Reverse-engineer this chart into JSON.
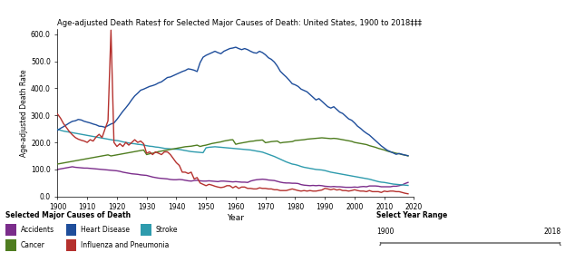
{
  "title": "Age-adjusted Death Rates† for Selected Major Causes of Death: United States, 1900 to 2018‡‡‡",
  "xlabel": "Year",
  "ylabel": "Age-adjusted Death Rate",
  "ylim": [
    0,
    620
  ],
  "xlim": [
    1900,
    2020
  ],
  "yticks": [
    0.0,
    100.0,
    200.0,
    300.0,
    400.0,
    500.0,
    600.0
  ],
  "xticks": [
    1900,
    1910,
    1920,
    1930,
    1940,
    1950,
    1960,
    1970,
    1980,
    1990,
    2000,
    2010,
    2020
  ],
  "legend_title": "Selected Major Causes of Death",
  "legend_entries": [
    "Accidents",
    "Heart Disease",
    "Stroke",
    "Cancer",
    "Influenza and Pneumonia"
  ],
  "legend_colors": [
    "#7B2D8B",
    "#1F4E9B",
    "#2E9BAD",
    "#4F7D20",
    "#B5312E"
  ],
  "background_color": "#ffffff",
  "heart_disease": {
    "years": [
      1900,
      1901,
      1902,
      1903,
      1904,
      1905,
      1906,
      1907,
      1908,
      1909,
      1910,
      1911,
      1912,
      1913,
      1914,
      1915,
      1916,
      1917,
      1918,
      1919,
      1920,
      1921,
      1922,
      1923,
      1924,
      1925,
      1926,
      1927,
      1928,
      1929,
      1930,
      1931,
      1932,
      1933,
      1934,
      1935,
      1936,
      1937,
      1938,
      1939,
      1940,
      1941,
      1942,
      1943,
      1944,
      1945,
      1946,
      1947,
      1948,
      1949,
      1950,
      1951,
      1952,
      1953,
      1954,
      1955,
      1956,
      1957,
      1958,
      1959,
      1960,
      1961,
      1962,
      1963,
      1964,
      1965,
      1966,
      1967,
      1968,
      1969,
      1970,
      1971,
      1972,
      1973,
      1974,
      1975,
      1976,
      1977,
      1978,
      1979,
      1980,
      1981,
      1982,
      1983,
      1984,
      1985,
      1986,
      1987,
      1988,
      1989,
      1990,
      1991,
      1992,
      1993,
      1994,
      1995,
      1996,
      1997,
      1998,
      1999,
      2000,
      2001,
      2002,
      2003,
      2004,
      2005,
      2006,
      2007,
      2008,
      2009,
      2010,
      2011,
      2012,
      2013,
      2014,
      2015,
      2016,
      2017,
      2018
    ],
    "values": [
      245,
      252,
      258,
      265,
      272,
      278,
      280,
      285,
      283,
      278,
      275,
      272,
      268,
      265,
      260,
      259,
      256,
      262,
      268,
      272,
      285,
      300,
      315,
      328,
      342,
      358,
      372,
      382,
      393,
      397,
      402,
      407,
      410,
      414,
      420,
      424,
      432,
      440,
      442,
      447,
      452,
      457,
      462,
      466,
      472,
      470,
      467,
      462,
      495,
      515,
      522,
      527,
      532,
      537,
      532,
      528,
      537,
      542,
      547,
      549,
      552,
      547,
      543,
      547,
      543,
      537,
      532,
      530,
      537,
      532,
      524,
      513,
      507,
      497,
      482,
      463,
      452,
      442,
      430,
      417,
      413,
      407,
      397,
      392,
      387,
      377,
      367,
      357,
      362,
      352,
      342,
      332,
      327,
      332,
      322,
      312,
      307,
      297,
      287,
      282,
      272,
      260,
      252,
      242,
      234,
      227,
      217,
      207,
      197,
      187,
      179,
      171,
      166,
      161,
      156,
      159,
      156,
      153,
      151
    ]
  },
  "cancer": {
    "years": [
      1900,
      1901,
      1902,
      1903,
      1904,
      1905,
      1906,
      1907,
      1908,
      1909,
      1910,
      1911,
      1912,
      1913,
      1914,
      1915,
      1916,
      1917,
      1918,
      1919,
      1920,
      1921,
      1922,
      1923,
      1924,
      1925,
      1926,
      1927,
      1928,
      1929,
      1930,
      1931,
      1932,
      1933,
      1934,
      1935,
      1936,
      1937,
      1938,
      1939,
      1940,
      1941,
      1942,
      1943,
      1944,
      1945,
      1946,
      1947,
      1948,
      1949,
      1950,
      1951,
      1952,
      1953,
      1954,
      1955,
      1956,
      1957,
      1958,
      1959,
      1960,
      1961,
      1962,
      1963,
      1964,
      1965,
      1966,
      1967,
      1968,
      1969,
      1970,
      1971,
      1972,
      1973,
      1974,
      1975,
      1976,
      1977,
      1978,
      1979,
      1980,
      1981,
      1982,
      1983,
      1984,
      1985,
      1986,
      1987,
      1988,
      1989,
      1990,
      1991,
      1992,
      1993,
      1994,
      1995,
      1996,
      1997,
      1998,
      1999,
      2000,
      2001,
      2002,
      2003,
      2004,
      2005,
      2006,
      2007,
      2008,
      2009,
      2010,
      2011,
      2012,
      2013,
      2014,
      2015,
      2016,
      2017,
      2018
    ],
    "values": [
      120,
      122,
      124,
      126,
      128,
      130,
      132,
      134,
      136,
      138,
      140,
      142,
      144,
      146,
      148,
      150,
      152,
      154,
      150,
      152,
      154,
      156,
      158,
      160,
      162,
      164,
      166,
      168,
      170,
      172,
      155,
      158,
      160,
      163,
      166,
      168,
      170,
      172,
      174,
      176,
      178,
      180,
      182,
      184,
      185,
      186,
      188,
      190,
      185,
      188,
      190,
      193,
      196,
      198,
      200,
      202,
      205,
      207,
      209,
      210,
      193,
      196,
      198,
      200,
      202,
      204,
      205,
      207,
      208,
      209,
      199,
      201,
      203,
      204,
      205,
      198,
      200,
      201,
      202,
      203,
      207,
      208,
      209,
      210,
      212,
      213,
      214,
      215,
      216,
      217,
      216,
      215,
      214,
      215,
      214,
      212,
      210,
      208,
      206,
      204,
      200,
      198,
      196,
      194,
      192,
      188,
      185,
      182,
      178,
      175,
      172,
      168,
      165,
      163,
      160,
      158,
      155,
      153,
      150
    ]
  },
  "accidents": {
    "years": [
      1900,
      1901,
      1902,
      1903,
      1904,
      1905,
      1906,
      1907,
      1908,
      1909,
      1910,
      1911,
      1912,
      1913,
      1914,
      1915,
      1916,
      1917,
      1918,
      1919,
      1920,
      1921,
      1922,
      1923,
      1924,
      1925,
      1926,
      1927,
      1928,
      1929,
      1930,
      1931,
      1932,
      1933,
      1934,
      1935,
      1936,
      1937,
      1938,
      1939,
      1940,
      1941,
      1942,
      1943,
      1944,
      1945,
      1946,
      1947,
      1948,
      1949,
      1950,
      1951,
      1952,
      1953,
      1954,
      1955,
      1956,
      1957,
      1958,
      1959,
      1960,
      1961,
      1962,
      1963,
      1964,
      1965,
      1966,
      1967,
      1968,
      1969,
      1970,
      1971,
      1972,
      1973,
      1974,
      1975,
      1976,
      1977,
      1978,
      1979,
      1980,
      1981,
      1982,
      1983,
      1984,
      1985,
      1986,
      1987,
      1988,
      1989,
      1990,
      1991,
      1992,
      1993,
      1994,
      1995,
      1996,
      1997,
      1998,
      1999,
      2000,
      2001,
      2002,
      2003,
      2004,
      2005,
      2006,
      2007,
      2008,
      2009,
      2010,
      2011,
      2012,
      2013,
      2014,
      2015,
      2016,
      2017,
      2018
    ],
    "values": [
      100,
      102,
      104,
      106,
      108,
      110,
      108,
      107,
      106,
      105,
      105,
      104,
      103,
      102,
      101,
      100,
      99,
      98,
      97,
      96,
      95,
      93,
      90,
      88,
      86,
      84,
      83,
      82,
      80,
      79,
      78,
      75,
      72,
      70,
      68,
      67,
      66,
      65,
      63,
      62,
      62,
      63,
      62,
      60,
      58,
      57,
      59,
      60,
      58,
      57,
      57,
      58,
      57,
      56,
      55,
      57,
      57,
      56,
      55,
      54,
      55,
      54,
      53,
      53,
      52,
      57,
      60,
      62,
      63,
      64,
      63,
      61,
      60,
      59,
      56,
      53,
      51,
      50,
      50,
      49,
      49,
      48,
      44,
      42,
      41,
      40,
      41,
      40,
      41,
      40,
      38,
      37,
      36,
      37,
      36,
      36,
      35,
      34,
      34,
      34,
      35,
      34,
      36,
      37,
      36,
      39,
      39,
      39,
      38,
      36,
      36,
      36,
      36,
      38,
      38,
      40,
      43,
      48,
      52
    ]
  },
  "stroke": {
    "years": [
      1900,
      1901,
      1902,
      1903,
      1904,
      1905,
      1906,
      1907,
      1908,
      1909,
      1910,
      1911,
      1912,
      1913,
      1914,
      1915,
      1916,
      1917,
      1918,
      1919,
      1920,
      1921,
      1922,
      1923,
      1924,
      1925,
      1926,
      1927,
      1928,
      1929,
      1930,
      1931,
      1932,
      1933,
      1934,
      1935,
      1936,
      1937,
      1938,
      1939,
      1940,
      1941,
      1942,
      1943,
      1944,
      1945,
      1946,
      1947,
      1948,
      1949,
      1950,
      1951,
      1952,
      1953,
      1954,
      1955,
      1956,
      1957,
      1958,
      1959,
      1960,
      1961,
      1962,
      1963,
      1964,
      1965,
      1966,
      1967,
      1968,
      1969,
      1970,
      1971,
      1972,
      1973,
      1974,
      1975,
      1976,
      1977,
      1978,
      1979,
      1980,
      1981,
      1982,
      1983,
      1984,
      1985,
      1986,
      1987,
      1988,
      1989,
      1990,
      1991,
      1992,
      1993,
      1994,
      1995,
      1996,
      1997,
      1998,
      1999,
      2000,
      2001,
      2002,
      2003,
      2004,
      2005,
      2006,
      2007,
      2008,
      2009,
      2010,
      2011,
      2012,
      2013,
      2014,
      2015,
      2016,
      2017,
      2018
    ],
    "values": [
      248,
      245,
      242,
      240,
      238,
      236,
      234,
      232,
      230,
      228,
      226,
      224,
      222,
      220,
      218,
      216,
      214,
      212,
      210,
      208,
      207,
      205,
      202,
      200,
      198,
      196,
      195,
      193,
      192,
      190,
      188,
      186,
      185,
      183,
      182,
      180,
      178,
      177,
      176,
      175,
      175,
      174,
      172,
      170,
      168,
      166,
      165,
      164,
      163,
      162,
      180,
      182,
      183,
      184,
      183,
      182,
      181,
      180,
      179,
      178,
      177,
      176,
      175,
      174,
      173,
      172,
      170,
      168,
      166,
      164,
      160,
      156,
      152,
      148,
      143,
      138,
      133,
      128,
      124,
      120,
      118,
      115,
      111,
      108,
      106,
      104,
      102,
      100,
      99,
      98,
      96,
      93,
      90,
      88,
      86,
      84,
      82,
      80,
      78,
      76,
      74,
      72,
      70,
      68,
      66,
      64,
      61,
      58,
      55,
      53,
      52,
      50,
      48,
      46,
      45,
      44,
      43,
      42,
      41
    ]
  },
  "influenza": {
    "years": [
      1900,
      1901,
      1902,
      1903,
      1904,
      1905,
      1906,
      1907,
      1908,
      1909,
      1910,
      1911,
      1912,
      1913,
      1914,
      1915,
      1916,
      1917,
      1918,
      1919,
      1920,
      1921,
      1922,
      1923,
      1924,
      1925,
      1926,
      1927,
      1928,
      1929,
      1930,
      1931,
      1932,
      1933,
      1934,
      1935,
      1936,
      1937,
      1938,
      1939,
      1940,
      1941,
      1942,
      1943,
      1944,
      1945,
      1946,
      1947,
      1948,
      1949,
      1950,
      1951,
      1952,
      1953,
      1954,
      1955,
      1956,
      1957,
      1958,
      1959,
      1960,
      1961,
      1962,
      1963,
      1964,
      1965,
      1966,
      1967,
      1968,
      1969,
      1970,
      1971,
      1972,
      1973,
      1974,
      1975,
      1976,
      1977,
      1978,
      1979,
      1980,
      1981,
      1982,
      1983,
      1984,
      1985,
      1986,
      1987,
      1988,
      1989,
      1990,
      1991,
      1992,
      1993,
      1994,
      1995,
      1996,
      1997,
      1998,
      1999,
      2000,
      2001,
      2002,
      2003,
      2004,
      2005,
      2006,
      2007,
      2008,
      2009,
      2010,
      2011,
      2012,
      2013,
      2014,
      2015,
      2016,
      2017,
      2018
    ],
    "values": [
      305,
      290,
      270,
      255,
      240,
      228,
      218,
      212,
      208,
      205,
      200,
      210,
      205,
      220,
      230,
      218,
      250,
      280,
      615,
      200,
      185,
      195,
      185,
      200,
      190,
      200,
      210,
      200,
      205,
      195,
      160,
      165,
      155,
      165,
      160,
      155,
      165,
      165,
      155,
      140,
      125,
      115,
      90,
      90,
      85,
      90,
      65,
      70,
      50,
      45,
      40,
      45,
      42,
      38,
      35,
      33,
      35,
      40,
      40,
      32,
      38,
      30,
      35,
      35,
      30,
      30,
      28,
      28,
      32,
      30,
      30,
      28,
      28,
      25,
      25,
      22,
      22,
      22,
      25,
      28,
      25,
      22,
      20,
      22,
      20,
      22,
      20,
      20,
      22,
      24,
      30,
      28,
      25,
      28,
      24,
      26,
      22,
      22,
      20,
      22,
      25,
      22,
      20,
      20,
      18,
      22,
      18,
      18,
      18,
      15,
      20,
      18,
      20,
      20,
      18,
      18,
      15,
      12,
      10
    ]
  },
  "slider_range": [
    "1900",
    "2018"
  ]
}
